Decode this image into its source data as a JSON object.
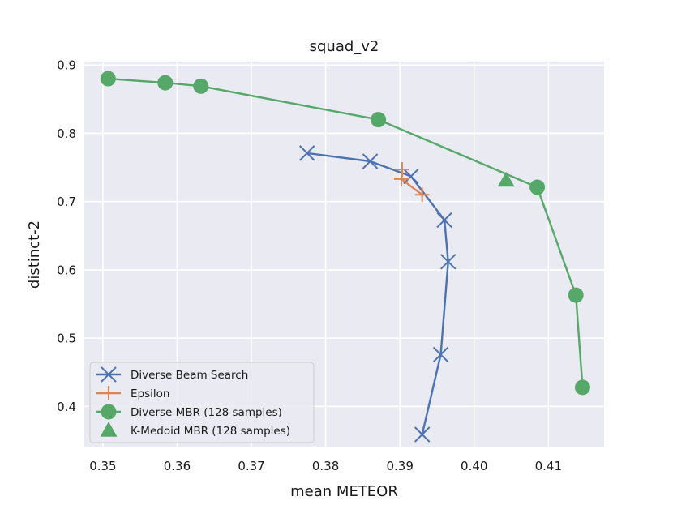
{
  "chart_data": {
    "type": "line",
    "title": "squad_v2",
    "xlabel": "mean METEOR",
    "ylabel": "distinct-2",
    "xlim": [
      0.3475,
      0.4175
    ],
    "ylim": [
      0.34,
      0.905
    ],
    "xticks": [
      0.35,
      0.36,
      0.37,
      0.38,
      0.39,
      0.4,
      0.41
    ],
    "xtick_labels": [
      "0.35",
      "0.36",
      "0.37",
      "0.38",
      "0.39",
      "0.40",
      "0.41"
    ],
    "yticks": [
      0.4,
      0.5,
      0.6,
      0.7,
      0.8,
      0.9
    ],
    "ytick_labels": [
      "0.4",
      "0.5",
      "0.6",
      "0.7",
      "0.8",
      "0.9"
    ],
    "grid": true,
    "legend_position": "lower-left",
    "series": [
      {
        "name": "Diverse Beam Search",
        "color": "#4c72b0",
        "marker": "x",
        "line": true,
        "x": [
          0.3775,
          0.386,
          0.3915,
          0.396,
          0.3965,
          0.3955,
          0.393
        ],
        "y": [
          0.771,
          0.759,
          0.737,
          0.673,
          0.612,
          0.476,
          0.359
        ]
      },
      {
        "name": "Epsilon",
        "color": "#dd8452",
        "marker": "plus",
        "line": true,
        "x": [
          0.3903,
          0.3902,
          0.393
        ],
        "y": [
          0.747,
          0.733,
          0.71
        ]
      },
      {
        "name": "Diverse MBR (128 samples)",
        "color": "#55a868",
        "marker": "circle",
        "line": true,
        "x": [
          0.3507,
          0.3584,
          0.3632,
          0.3871,
          0.4085,
          0.4137,
          0.4146
        ],
        "y": [
          0.88,
          0.874,
          0.869,
          0.82,
          0.721,
          0.563,
          0.428
        ]
      },
      {
        "name": "K-Medoid MBR (128 samples)",
        "color": "#55a868",
        "marker": "triangle",
        "line": false,
        "x": [
          0.4043
        ],
        "y": [
          0.731
        ]
      }
    ]
  }
}
